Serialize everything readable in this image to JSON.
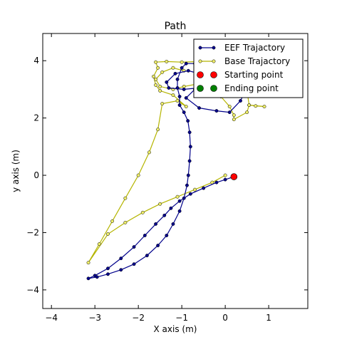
{
  "chart_data": {
    "type": "line",
    "title": "Path",
    "xlabel": "X axis (m)",
    "ylabel": "y axis (m)",
    "xlim": [
      -4.2,
      1.9
    ],
    "ylim": [
      -4.65,
      4.95
    ],
    "xticks": [
      -4,
      -3,
      -2,
      -1,
      0,
      1
    ],
    "yticks": [
      -4,
      -2,
      0,
      2,
      4
    ],
    "grid": false,
    "legend_position": "upper-right",
    "series": [
      {
        "name": "EEF Trajactory",
        "color": "#00008b",
        "marker_color": "#00008b",
        "points": [
          [
            0.2,
            -0.05
          ],
          [
            0.0,
            -0.15
          ],
          [
            -0.2,
            -0.25
          ],
          [
            -0.5,
            -0.45
          ],
          [
            -0.8,
            -0.65
          ],
          [
            -1.05,
            -0.9
          ],
          [
            -1.25,
            -1.15
          ],
          [
            -1.4,
            -1.4
          ],
          [
            -1.6,
            -1.7
          ],
          [
            -1.85,
            -2.1
          ],
          [
            -2.1,
            -2.5
          ],
          [
            -2.4,
            -2.9
          ],
          [
            -2.7,
            -3.25
          ],
          [
            -3.0,
            -3.5
          ],
          [
            -3.15,
            -3.6
          ],
          [
            -2.95,
            -3.55
          ],
          [
            -2.7,
            -3.45
          ],
          [
            -2.4,
            -3.3
          ],
          [
            -2.1,
            -3.1
          ],
          [
            -1.8,
            -2.8
          ],
          [
            -1.55,
            -2.45
          ],
          [
            -1.35,
            -2.1
          ],
          [
            -1.2,
            -1.7
          ],
          [
            -1.05,
            -1.25
          ],
          [
            -0.95,
            -0.8
          ],
          [
            -0.88,
            -0.35
          ],
          [
            -0.85,
            0.0
          ],
          [
            -0.82,
            0.5
          ],
          [
            -0.8,
            1.0
          ],
          [
            -0.82,
            1.5
          ],
          [
            -0.86,
            1.9
          ],
          [
            -0.95,
            2.2
          ],
          [
            -1.05,
            2.45
          ],
          [
            -1.05,
            2.75
          ],
          [
            -1.1,
            3.05
          ],
          [
            -1.1,
            3.35
          ],
          [
            -1.0,
            3.75
          ],
          [
            -0.9,
            3.9
          ],
          [
            -0.7,
            3.9
          ],
          [
            -0.6,
            3.5
          ],
          [
            -0.7,
            3.0
          ],
          [
            -0.9,
            2.7
          ],
          [
            -0.6,
            2.35
          ],
          [
            -0.2,
            2.25
          ],
          [
            0.1,
            2.2
          ],
          [
            0.35,
            2.6
          ],
          [
            0.5,
            3.05
          ],
          [
            0.55,
            3.3
          ],
          [
            0.4,
            3.5
          ],
          [
            0.1,
            3.4
          ],
          [
            -0.2,
            3.2
          ],
          [
            -0.6,
            3.05
          ],
          [
            -0.95,
            3.0
          ],
          [
            -1.3,
            3.05
          ],
          [
            -1.35,
            3.25
          ],
          [
            -1.15,
            3.55
          ],
          [
            -0.85,
            3.65
          ],
          [
            -0.6,
            3.55
          ],
          [
            -0.55,
            3.4
          ]
        ]
      },
      {
        "name": "Base Trajactory",
        "color": "#b5b500",
        "marker_color": "#f0ef6a",
        "points": [
          [
            0.0,
            0.0
          ],
          [
            -0.3,
            -0.25
          ],
          [
            -0.7,
            -0.5
          ],
          [
            -1.1,
            -0.75
          ],
          [
            -1.5,
            -1.0
          ],
          [
            -1.9,
            -1.3
          ],
          [
            -2.3,
            -1.65
          ],
          [
            -2.7,
            -2.05
          ],
          [
            -3.15,
            -3.05
          ],
          [
            -2.9,
            -2.4
          ],
          [
            -2.6,
            -1.6
          ],
          [
            -2.3,
            -0.8
          ],
          [
            -2.0,
            0.0
          ],
          [
            -1.75,
            0.8
          ],
          [
            -1.55,
            1.6
          ],
          [
            -1.45,
            2.5
          ],
          [
            -1.1,
            2.6
          ],
          [
            -0.9,
            2.4
          ],
          [
            -1.2,
            2.8
          ],
          [
            -1.5,
            2.95
          ],
          [
            -1.6,
            3.15
          ],
          [
            -1.65,
            3.45
          ],
          [
            -1.55,
            3.75
          ],
          [
            -1.6,
            3.95
          ],
          [
            -1.35,
            3.97
          ],
          [
            -1.0,
            3.95
          ],
          [
            -0.6,
            3.97
          ],
          [
            -0.35,
            3.95
          ],
          [
            -0.25,
            3.6
          ],
          [
            -0.2,
            3.2
          ],
          [
            -0.1,
            2.75
          ],
          [
            0.1,
            2.4
          ],
          [
            0.2,
            2.1
          ],
          [
            0.2,
            1.95
          ],
          [
            0.5,
            2.2
          ],
          [
            0.55,
            2.45
          ],
          [
            0.7,
            2.42
          ],
          [
            0.9,
            2.4
          ],
          [
            0.55,
            2.45
          ],
          [
            0.5,
            2.95
          ],
          [
            0.45,
            3.4
          ],
          [
            0.2,
            3.55
          ],
          [
            -0.2,
            3.4
          ],
          [
            -0.6,
            3.2
          ],
          [
            -0.95,
            3.1
          ],
          [
            -1.2,
            3.0
          ],
          [
            -1.5,
            3.1
          ],
          [
            -1.6,
            3.35
          ],
          [
            -1.45,
            3.6
          ],
          [
            -1.2,
            3.75
          ],
          [
            -0.95,
            3.65
          ]
        ]
      },
      {
        "name": "Starting point",
        "color": "#ff0000",
        "points": [
          [
            0.2,
            -0.05
          ]
        ]
      },
      {
        "name": "Ending point",
        "color": "#008000",
        "points": []
      }
    ]
  }
}
